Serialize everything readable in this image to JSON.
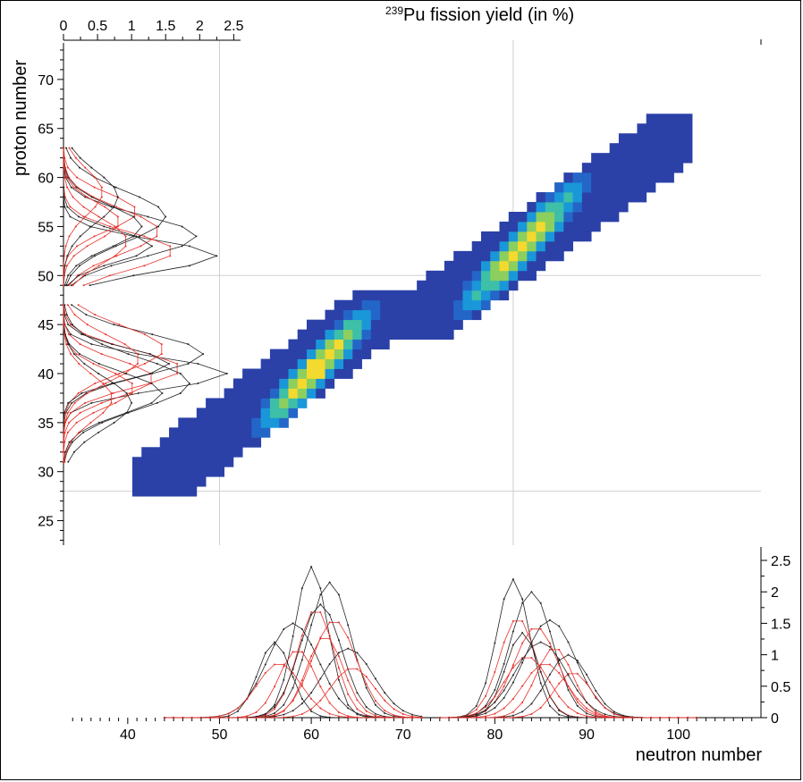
{
  "chart_data": [
    {
      "type": "heatmap",
      "title": "239Pu fission yield (in %)",
      "title_superscript": "239",
      "title_main": "Pu fission yield (in %)",
      "xlabel": "",
      "ylabel": "",
      "xlim": [
        33,
        109
      ],
      "ylim": [
        22.5,
        74
      ],
      "grid_lines": {
        "x": [
          50,
          82
        ],
        "y": [
          28,
          50
        ]
      },
      "colormap": [
        "#2b41a8",
        "#2466c8",
        "#1a97d8",
        "#3dbfa8",
        "#8ccf5e",
        "#f4d92e"
      ],
      "fragment_clusters": [
        {
          "name": "light",
          "n_range": [
            41,
            69
          ],
          "z_range": [
            28,
            48
          ],
          "peak_n": 60.5,
          "peak_z": 40.5
        },
        {
          "name": "heavy",
          "n_range": [
            67,
            101
          ],
          "z_range": [
            44,
            66
          ],
          "peak_n": 83,
          "peak_z": 53
        }
      ],
      "grid": true
    },
    {
      "type": "line",
      "orientation": "horizontal",
      "ylabel": "proton number",
      "xticks": [
        "0",
        "0.5",
        "1",
        "1.5",
        "2",
        "2.5"
      ],
      "yticks": [
        "25",
        "30",
        "35",
        "40",
        "45",
        "50",
        "55",
        "60",
        "65",
        "70"
      ],
      "xlim": [
        0,
        2.6
      ],
      "ylim": [
        22.5,
        74
      ],
      "peaks": [
        {
          "z": 40,
          "yield": 2.4
        },
        {
          "z": 42,
          "yield": 2.05
        },
        {
          "z": 39,
          "yield": 1.85
        },
        {
          "z": 41,
          "yield": 1.55
        },
        {
          "z": 38,
          "yield": 1.45
        },
        {
          "z": 37,
          "yield": 1.0
        },
        {
          "z": 52,
          "yield": 2.25
        },
        {
          "z": 54,
          "yield": 1.95
        },
        {
          "z": 56,
          "yield": 1.5
        },
        {
          "z": 53,
          "yield": 1.3
        },
        {
          "z": 55,
          "yield": 1.15
        },
        {
          "z": 58,
          "yield": 0.8
        }
      ],
      "series": [
        {
          "values": []
        },
        {
          "values": []
        }
      ]
    },
    {
      "type": "line",
      "xlabel": "neutron number",
      "xticks": [
        "40",
        "50",
        "60",
        "70",
        "80",
        "90",
        "100"
      ],
      "yticks": [
        "0",
        "0.5",
        "1",
        "1.5",
        "2",
        "2.5"
      ],
      "xlim": [
        33,
        109
      ],
      "ylim": [
        0,
        2.6
      ],
      "peaks": [
        {
          "n": 60,
          "yield": 2.4
        },
        {
          "n": 62,
          "yield": 2.15
        },
        {
          "n": 58,
          "yield": 1.5
        },
        {
          "n": 56,
          "yield": 1.2
        },
        {
          "n": 61,
          "yield": 1.8
        },
        {
          "n": 64,
          "yield": 1.1
        },
        {
          "n": 82,
          "yield": 2.2
        },
        {
          "n": 84,
          "yield": 2.0
        },
        {
          "n": 86,
          "yield": 1.55
        },
        {
          "n": 83,
          "yield": 1.35
        },
        {
          "n": 88,
          "yield": 1.0
        },
        {
          "n": 85,
          "yield": 1.2
        }
      ],
      "series": [
        {
          "values": []
        },
        {
          "values": []
        }
      ]
    }
  ],
  "colors": {
    "black_series": "#222222",
    "red_series": "#e8302a",
    "gridline": "#cfcfcf"
  }
}
